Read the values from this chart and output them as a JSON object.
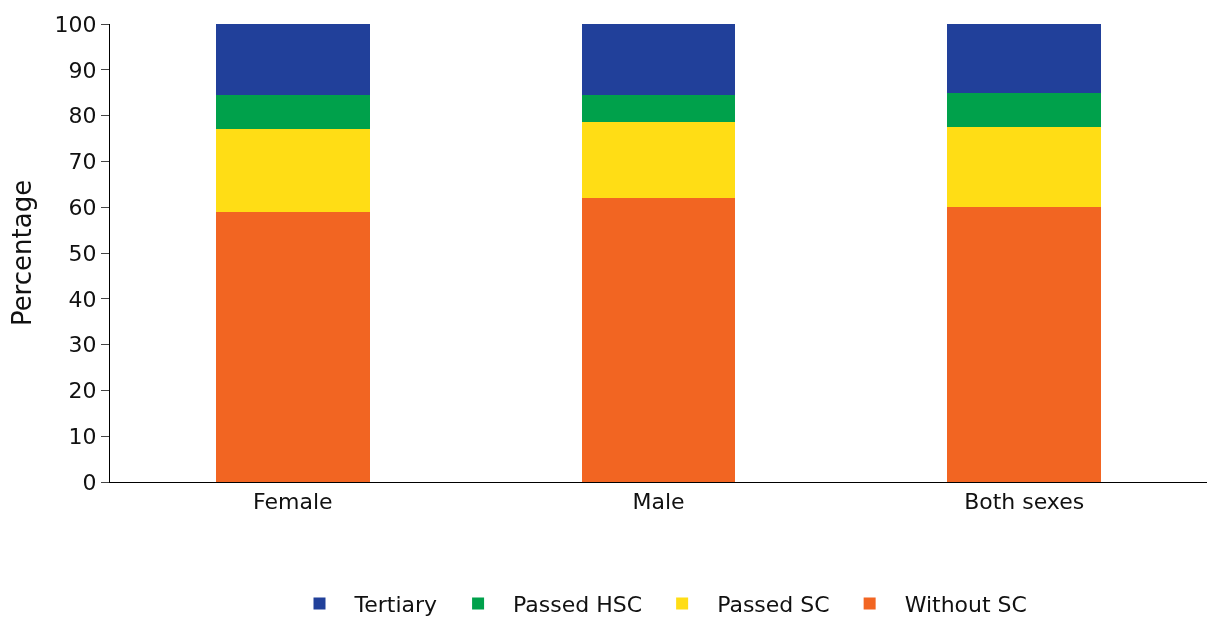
{
  "chart_data": {
    "type": "bar",
    "stacked": true,
    "ylabel": "Percentage",
    "categories": [
      "Female",
      "Male",
      "Both sexes"
    ],
    "series": [
      {
        "name": "Without SC",
        "color": "#f26522",
        "values": [
          59,
          62,
          60
        ]
      },
      {
        "name": "Passed SC",
        "color": "#ffdd15",
        "values": [
          18,
          16.5,
          17.5
        ]
      },
      {
        "name": "Passed HSC",
        "color": "#00a14b",
        "values": [
          7.5,
          6,
          7.5
        ]
      },
      {
        "name": "Tertiary",
        "color": "#21409a",
        "values": [
          15.5,
          15.5,
          15
        ]
      }
    ],
    "ylim": [
      0,
      100
    ],
    "yticks": [
      0,
      10,
      20,
      30,
      40,
      50,
      60,
      70,
      80,
      90,
      100
    ],
    "legend": "bottom"
  }
}
